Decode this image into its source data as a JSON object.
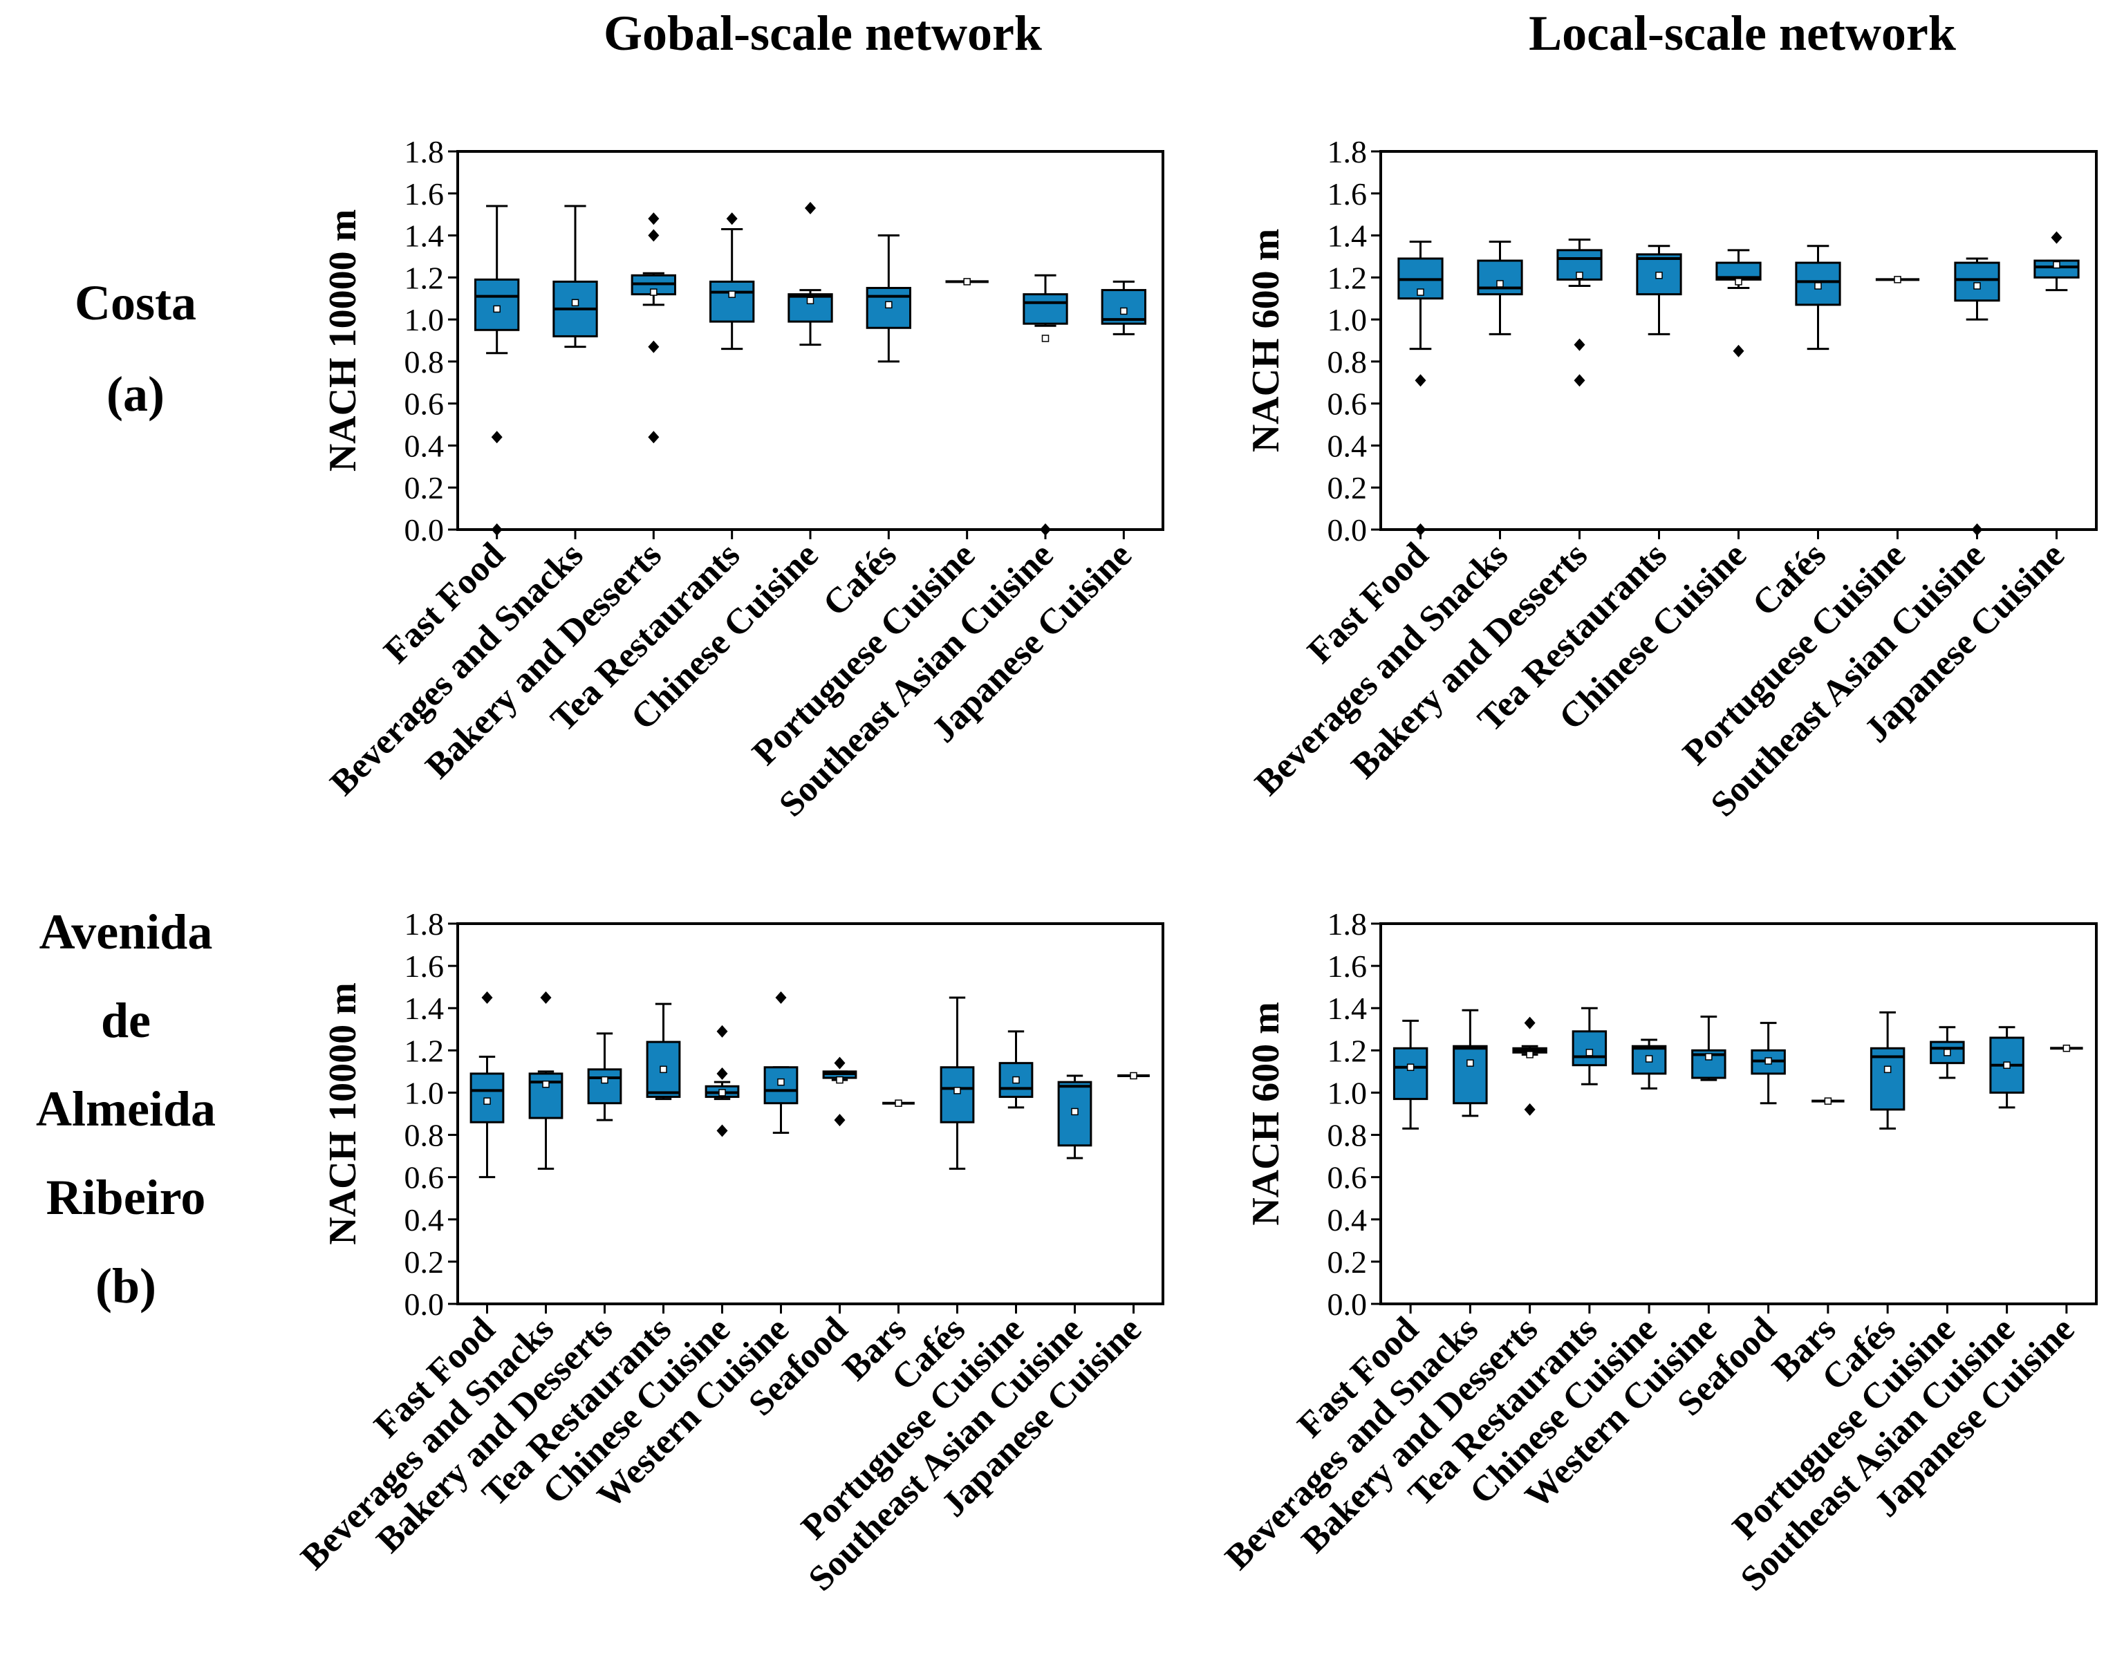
{
  "column_titles": [
    "Gobal-scale network",
    "Local-scale network"
  ],
  "row_labels": [
    [
      "Costa",
      "(a)"
    ],
    [
      "Avenida",
      "de",
      "Almeida",
      "Ribeiro",
      "(b)"
    ]
  ],
  "colors": {
    "box_fill": "#1382bd",
    "line": "#000000",
    "background": "#ffffff"
  },
  "chart_data": [
    {
      "type": "box",
      "id": "costa-global",
      "ylabel": "NACH 10000 m",
      "ylim": [
        0.0,
        1.8
      ],
      "yticks": [
        "0.0",
        "0.2",
        "0.4",
        "0.6",
        "0.8",
        "1.0",
        "1.2",
        "1.4",
        "1.6",
        "1.8"
      ],
      "categories": [
        "Fast Food",
        "Beverages and Snacks",
        "Bakery and Desserts",
        "Tea Restaurants",
        "Chinese Cuisine",
        "Cafés",
        "Portuguese Cuisine",
        "Southeast Asian Cuisine",
        "Japanese Cuisine"
      ],
      "boxes": [
        {
          "whislo": 0.84,
          "q1": 0.95,
          "med": 1.11,
          "q3": 1.19,
          "whishi": 1.54,
          "mean": 1.05,
          "fliers": [
            0.44,
            0.0
          ]
        },
        {
          "whislo": 0.87,
          "q1": 0.92,
          "med": 1.05,
          "q3": 1.18,
          "whishi": 1.54,
          "mean": 1.08,
          "fliers": []
        },
        {
          "whislo": 1.07,
          "q1": 1.12,
          "med": 1.17,
          "q3": 1.21,
          "whishi": 1.22,
          "mean": 1.13,
          "fliers": [
            1.48,
            1.4,
            0.87,
            0.44
          ]
        },
        {
          "whislo": 0.86,
          "q1": 0.99,
          "med": 1.13,
          "q3": 1.18,
          "whishi": 1.43,
          "mean": 1.12,
          "fliers": [
            1.48
          ]
        },
        {
          "whislo": 0.88,
          "q1": 0.99,
          "med": 1.11,
          "q3": 1.12,
          "whishi": 1.14,
          "mean": 1.09,
          "fliers": [
            1.53
          ]
        },
        {
          "whislo": 0.8,
          "q1": 0.96,
          "med": 1.11,
          "q3": 1.15,
          "whishi": 1.4,
          "mean": 1.07,
          "fliers": []
        },
        {
          "whislo": 1.18,
          "q1": 1.18,
          "med": 1.18,
          "q3": 1.18,
          "whishi": 1.18,
          "mean": 1.18,
          "fliers": []
        },
        {
          "whislo": 0.97,
          "q1": 0.98,
          "med": 1.08,
          "q3": 1.12,
          "whishi": 1.21,
          "mean": 0.91,
          "fliers": [
            0.0
          ]
        },
        {
          "whislo": 0.93,
          "q1": 0.98,
          "med": 1.0,
          "q3": 1.14,
          "whishi": 1.18,
          "mean": 1.04,
          "fliers": []
        }
      ]
    },
    {
      "type": "box",
      "id": "costa-local",
      "ylabel": "NACH 600 m",
      "ylim": [
        0.0,
        1.8
      ],
      "yticks": [
        "0.0",
        "0.2",
        "0.4",
        "0.6",
        "0.8",
        "1.0",
        "1.2",
        "1.4",
        "1.6",
        "1.8"
      ],
      "categories": [
        "Fast Food",
        "Beverages and Snacks",
        "Bakery and Desserts",
        "Tea Restaurants",
        "Chinese Cuisine",
        "Cafés",
        "Portuguese Cuisine",
        "Southeast Asian Cuisine",
        "Japanese Cuisine"
      ],
      "boxes": [
        {
          "whislo": 0.86,
          "q1": 1.1,
          "med": 1.19,
          "q3": 1.29,
          "whishi": 1.37,
          "mean": 1.13,
          "fliers": [
            0.71,
            0.0
          ]
        },
        {
          "whislo": 0.93,
          "q1": 1.12,
          "med": 1.15,
          "q3": 1.28,
          "whishi": 1.37,
          "mean": 1.17,
          "fliers": []
        },
        {
          "whislo": 1.16,
          "q1": 1.19,
          "med": 1.29,
          "q3": 1.33,
          "whishi": 1.38,
          "mean": 1.21,
          "fliers": [
            0.88,
            0.71
          ]
        },
        {
          "whislo": 0.93,
          "q1": 1.12,
          "med": 1.29,
          "q3": 1.31,
          "whishi": 1.35,
          "mean": 1.21,
          "fliers": []
        },
        {
          "whislo": 1.15,
          "q1": 1.19,
          "med": 1.2,
          "q3": 1.27,
          "whishi": 1.33,
          "mean": 1.18,
          "fliers": [
            0.85
          ]
        },
        {
          "whislo": 0.86,
          "q1": 1.07,
          "med": 1.18,
          "q3": 1.27,
          "whishi": 1.35,
          "mean": 1.16,
          "fliers": []
        },
        {
          "whislo": 1.19,
          "q1": 1.19,
          "med": 1.19,
          "q3": 1.19,
          "whishi": 1.19,
          "mean": 1.19,
          "fliers": []
        },
        {
          "whislo": 1.0,
          "q1": 1.09,
          "med": 1.19,
          "q3": 1.27,
          "whishi": 1.29,
          "mean": 1.16,
          "fliers": [
            0.0
          ]
        },
        {
          "whislo": 1.14,
          "q1": 1.2,
          "med": 1.25,
          "q3": 1.28,
          "whishi": 1.28,
          "mean": 1.26,
          "fliers": [
            1.39
          ]
        }
      ]
    },
    {
      "type": "box",
      "id": "almeida-global",
      "ylabel": "NACH 10000 m",
      "ylim": [
        0.0,
        1.8
      ],
      "yticks": [
        "0.0",
        "0.2",
        "0.4",
        "0.6",
        "0.8",
        "1.0",
        "1.2",
        "1.4",
        "1.6",
        "1.8"
      ],
      "categories": [
        "Fast Food",
        "Beverages and Snacks",
        "Bakery and Desserts",
        "Tea Restaurants",
        "Chinese Cuisine",
        "Western Cuisine",
        "Seafood",
        "Bars",
        "Cafés",
        "Portuguese Cuisine",
        "Southeast Asian Cuisine",
        "Japanese Cuisine"
      ],
      "boxes": [
        {
          "whislo": 0.6,
          "q1": 0.86,
          "med": 1.01,
          "q3": 1.09,
          "whishi": 1.17,
          "mean": 0.96,
          "fliers": [
            1.45
          ]
        },
        {
          "whislo": 0.64,
          "q1": 0.88,
          "med": 1.05,
          "q3": 1.09,
          "whishi": 1.1,
          "mean": 1.04,
          "fliers": [
            1.45
          ]
        },
        {
          "whislo": 0.87,
          "q1": 0.95,
          "med": 1.07,
          "q3": 1.11,
          "whishi": 1.28,
          "mean": 1.06,
          "fliers": []
        },
        {
          "whislo": 0.97,
          "q1": 0.98,
          "med": 1.0,
          "q3": 1.24,
          "whishi": 1.42,
          "mean": 1.11,
          "fliers": []
        },
        {
          "whislo": 0.97,
          "q1": 0.98,
          "med": 1.0,
          "q3": 1.03,
          "whishi": 1.05,
          "mean": 1.0,
          "fliers": [
            1.29,
            1.09,
            0.82
          ]
        },
        {
          "whislo": 0.81,
          "q1": 0.95,
          "med": 1.01,
          "q3": 1.12,
          "whishi": 1.12,
          "mean": 1.05,
          "fliers": [
            1.45
          ]
        },
        {
          "whislo": 1.06,
          "q1": 1.07,
          "med": 1.09,
          "q3": 1.1,
          "whishi": 1.1,
          "mean": 1.06,
          "fliers": [
            1.14,
            0.87
          ]
        },
        {
          "whislo": 0.95,
          "q1": 0.95,
          "med": 0.95,
          "q3": 0.95,
          "whishi": 0.95,
          "mean": 0.95,
          "fliers": []
        },
        {
          "whislo": 0.64,
          "q1": 0.86,
          "med": 1.02,
          "q3": 1.12,
          "whishi": 1.45,
          "mean": 1.01,
          "fliers": []
        },
        {
          "whislo": 0.93,
          "q1": 0.98,
          "med": 1.02,
          "q3": 1.14,
          "whishi": 1.29,
          "mean": 1.06,
          "fliers": []
        },
        {
          "whislo": 0.69,
          "q1": 0.75,
          "med": 1.03,
          "q3": 1.05,
          "whishi": 1.08,
          "mean": 0.91,
          "fliers": []
        },
        {
          "whislo": 1.08,
          "q1": 1.08,
          "med": 1.08,
          "q3": 1.08,
          "whishi": 1.08,
          "mean": 1.08,
          "fliers": []
        }
      ]
    },
    {
      "type": "box",
      "id": "almeida-local",
      "ylabel": "NACH 600 m",
      "ylim": [
        0.0,
        1.8
      ],
      "yticks": [
        "0.0",
        "0.2",
        "0.4",
        "0.6",
        "0.8",
        "1.0",
        "1.2",
        "1.4",
        "1.6",
        "1.8"
      ],
      "categories": [
        "Fast Food",
        "Beverages and Snacks",
        "Bakery and Desserts",
        "Tea Restaurants",
        "Chinese Cuisine",
        "Western Cuisine",
        "Seafood",
        "Bars",
        "Cafés",
        "Portuguese Cuisine",
        "Southeast Asian Cuisine",
        "Japanese Cuisine"
      ],
      "boxes": [
        {
          "whislo": 0.83,
          "q1": 0.97,
          "med": 1.12,
          "q3": 1.21,
          "whishi": 1.34,
          "mean": 1.12,
          "fliers": []
        },
        {
          "whislo": 0.89,
          "q1": 0.95,
          "med": 1.21,
          "q3": 1.22,
          "whishi": 1.39,
          "mean": 1.14,
          "fliers": []
        },
        {
          "whislo": 1.18,
          "q1": 1.19,
          "med": 1.2,
          "q3": 1.21,
          "whishi": 1.22,
          "mean": 1.18,
          "fliers": [
            1.33,
            0.92
          ]
        },
        {
          "whislo": 1.04,
          "q1": 1.13,
          "med": 1.17,
          "q3": 1.29,
          "whishi": 1.4,
          "mean": 1.19,
          "fliers": []
        },
        {
          "whislo": 1.02,
          "q1": 1.09,
          "med": 1.21,
          "q3": 1.22,
          "whishi": 1.25,
          "mean": 1.16,
          "fliers": []
        },
        {
          "whislo": 1.06,
          "q1": 1.07,
          "med": 1.18,
          "q3": 1.2,
          "whishi": 1.36,
          "mean": 1.17,
          "fliers": []
        },
        {
          "whislo": 0.95,
          "q1": 1.09,
          "med": 1.15,
          "q3": 1.2,
          "whishi": 1.33,
          "mean": 1.15,
          "fliers": []
        },
        {
          "whislo": 0.96,
          "q1": 0.96,
          "med": 0.96,
          "q3": 0.96,
          "whishi": 0.96,
          "mean": 0.96,
          "fliers": []
        },
        {
          "whislo": 0.83,
          "q1": 0.92,
          "med": 1.17,
          "q3": 1.21,
          "whishi": 1.38,
          "mean": 1.11,
          "fliers": []
        },
        {
          "whislo": 1.07,
          "q1": 1.14,
          "med": 1.21,
          "q3": 1.24,
          "whishi": 1.31,
          "mean": 1.19,
          "fliers": []
        },
        {
          "whislo": 0.93,
          "q1": 1.0,
          "med": 1.13,
          "q3": 1.26,
          "whishi": 1.31,
          "mean": 1.13,
          "fliers": []
        },
        {
          "whislo": 1.21,
          "q1": 1.21,
          "med": 1.21,
          "q3": 1.21,
          "whishi": 1.21,
          "mean": 1.21,
          "fliers": []
        }
      ]
    }
  ]
}
